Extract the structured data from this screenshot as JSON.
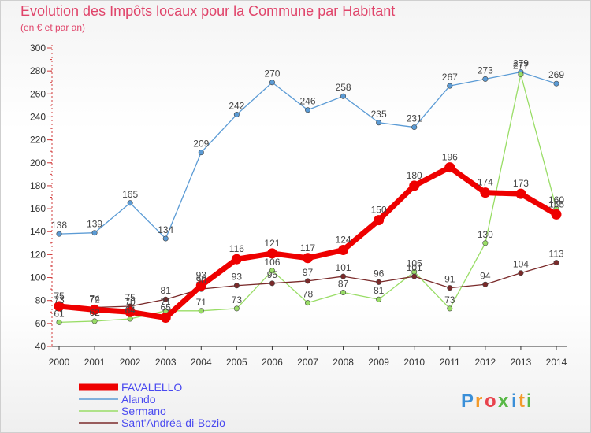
{
  "title": "Evolution des Impôts locaux pour la Commune par Habitant",
  "subtitle": "(en € et par an)",
  "logo": {
    "letters": [
      "P",
      "r",
      "o",
      "x",
      "i",
      "t",
      "i"
    ],
    "colors": [
      "#3a8fd8",
      "#f39a2a",
      "#e8434d",
      "#58b846",
      "#3a8fd8",
      "#f39a2a",
      "#58b846"
    ]
  },
  "chart_data": {
    "type": "line",
    "x": [
      2000,
      2001,
      2002,
      2003,
      2004,
      2005,
      2006,
      2007,
      2008,
      2009,
      2010,
      2011,
      2012,
      2013,
      2014
    ],
    "xlabel": "",
    "ylabel": "",
    "ylim": [
      40,
      300
    ],
    "yticks": [
      40,
      60,
      80,
      100,
      120,
      140,
      160,
      180,
      200,
      220,
      240,
      260,
      280,
      300
    ],
    "grid": false,
    "legend": "bottom-left",
    "series": [
      {
        "name": "Alando",
        "color": "#5b9bd5",
        "values": [
          138,
          139,
          165,
          134,
          209,
          242,
          270,
          246,
          258,
          235,
          231,
          267,
          273,
          279,
          269
        ]
      },
      {
        "name": "Sermano",
        "color": "#99dd66",
        "values": [
          61,
          62,
          64,
          71,
          71,
          73,
          106,
          78,
          87,
          81,
          105,
          73,
          130,
          277,
          160
        ]
      },
      {
        "name": "Sant'Andréa-di-Bozio",
        "color": "#7a2a2a",
        "values": [
          73,
          74,
          75,
          81,
          90,
          93,
          95,
          97,
          101,
          96,
          101,
          91,
          94,
          104,
          113
        ]
      },
      {
        "name": "FAVALELLO",
        "color": "#ee0000",
        "values": [
          75,
          72,
          70,
          65,
          93,
          116,
          121,
          117,
          124,
          150,
          180,
          196,
          174,
          173,
          155
        ]
      }
    ]
  }
}
